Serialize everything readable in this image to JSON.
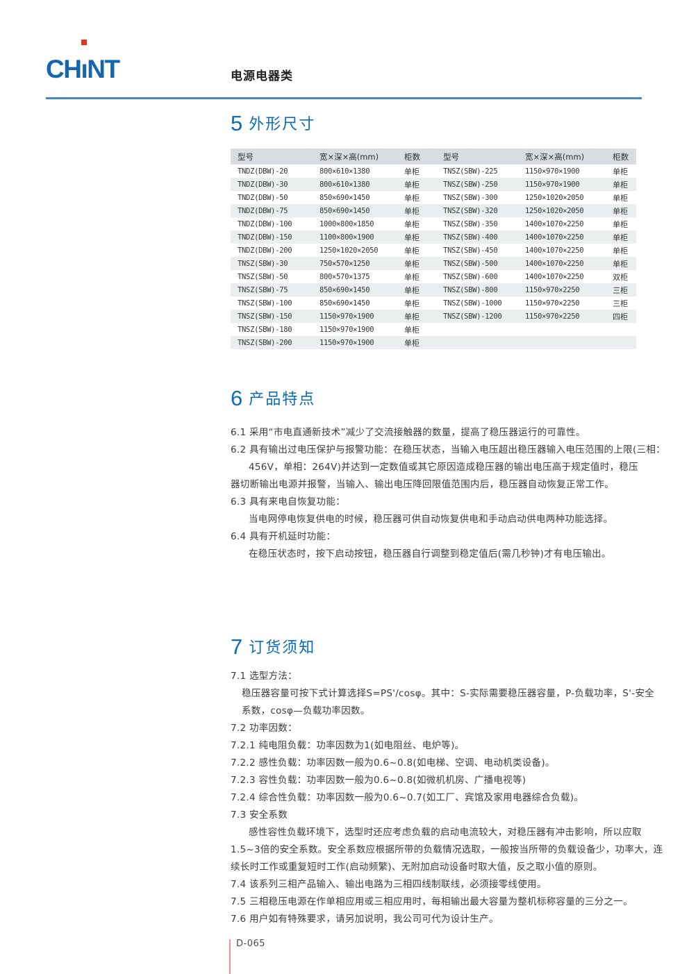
{
  "header": {
    "logo_left": "CH",
    "logo_stem": "ı",
    "logo_right": "NT",
    "category": "电源电器类"
  },
  "sections": [
    {
      "number": "5",
      "title": "外形尺寸"
    },
    {
      "number": "6",
      "title": "产品特点"
    },
    {
      "number": "7",
      "title": "订货须知"
    }
  ],
  "dimension_table": {
    "headers": [
      "型号",
      "宽×深×高(mm)",
      "柜数",
      "型号",
      "宽×深×高(mm)",
      "柜数"
    ],
    "rows": [
      [
        "TNDZ(DBW)-20",
        "800×610×1380",
        "单柜",
        "TNSZ(SBW)-225",
        "1150×970×1900",
        "单柜"
      ],
      [
        "TNDZ(DBW)-30",
        "800×610×1380",
        "单柜",
        "TNSZ(SBW)-250",
        "1150×970×1900",
        "单柜"
      ],
      [
        "TNDZ(DBW)-50",
        "850×690×1450",
        "单柜",
        "TNSZ(SBW)-300",
        "1250×1020×2050",
        "单柜"
      ],
      [
        "TNDZ(DBW)-75",
        "850×690×1450",
        "单柜",
        "TNSZ(SBW)-320",
        "1250×1020×2050",
        "单柜"
      ],
      [
        "TNDZ(DBW)-100",
        "1000×800×1850",
        "单柜",
        "TNSZ(SBW)-350",
        "1400×1070×2250",
        "单柜"
      ],
      [
        "TNDZ(DBW)-150",
        "1100×800×1900",
        "单柜",
        "TNSZ(SBW)-400",
        "1400×1070×2250",
        "单柜"
      ],
      [
        "TNDZ(DBW)-200",
        "1250×1020×2050",
        "单柜",
        "TNSZ(SBW)-450",
        "1400×1070×2250",
        "单柜"
      ],
      [
        "TNSZ(SBW)-30",
        "750×570×1250",
        "单柜",
        "TNSZ(SBW)-500",
        "1400×1070×2250",
        "单柜"
      ],
      [
        "TNSZ(SBW)-50",
        "800×570×1375",
        "单柜",
        "TNSZ(SBW)-600",
        "1400×1070×2250",
        "双柜"
      ],
      [
        "TNSZ(SBW)-75",
        "850×690×1450",
        "单柜",
        "TNSZ(SBW)-800",
        "1150×970×2250",
        "三柜"
      ],
      [
        "TNSZ(SBW)-100",
        "850×690×1450",
        "单柜",
        "TNSZ(SBW)-1000",
        "1150×970×2250",
        "三柜"
      ],
      [
        "TNSZ(SBW)-150",
        "1150×970×1900",
        "单柜",
        "TNSZ(SBW)-1200",
        "1150×970×2250",
        "四柜"
      ],
      [
        "TNSZ(SBW)-180",
        "1150×970×1900",
        "单柜",
        "",
        "",
        ""
      ],
      [
        "TNSZ(SBW)-200",
        "1150×970×1900",
        "单柜",
        "",
        "",
        ""
      ]
    ]
  },
  "features": {
    "lines": [
      {
        "indent": 0,
        "text": "6.1 采用“市电直通新技术”减少了交流接触器的数量，提高了稳压器运行的可靠性。"
      },
      {
        "indent": 0,
        "text": "6.2 具有输出过电压保护与报警功能：在稳压状态，当输入电压超出稳压器输入电压范围的上限(三相："
      },
      {
        "indent": 2,
        "text": "456V，单相：264V)并达到一定数值或其它原因造成稳压器的输出电压高于规定值时，稳压"
      },
      {
        "indent": 0,
        "text": "器切断输出电源并报警，当输入、输出电压降回限值范围内后，稳压器自动恢复正常工作。"
      },
      {
        "indent": 0,
        "text": "6.3 具有来电自恢复功能："
      },
      {
        "indent": 2,
        "text": "当电网停电恢复供电的时候，稳压器可供自动恢复供电和手动启动供电两种功能选择。"
      },
      {
        "indent": 0,
        "text": "6.4 具有开机延时功能："
      },
      {
        "indent": 2,
        "text": "在稳压状态时，按下启动按钮，稳压器自行调整到稳定值后(需几秒钟)才有电压输出。"
      }
    ]
  },
  "ordering": {
    "lines": [
      {
        "indent": 0,
        "text": "7.1 选型方法："
      },
      {
        "indent": 1,
        "text": "稳压器容量可按下式计算选择S=PS'/cosφ。其中：S-实际需要稳压器容量，P-负载功率，S'-安全"
      },
      {
        "indent": 1,
        "text": "系数，cosφ—负载功率因数。"
      },
      {
        "indent": 0,
        "text": "7.2 功率因数："
      },
      {
        "indent": 0,
        "text": "7.2.1 纯电阻负载：功率因数为1(如电阻丝、电炉等)。"
      },
      {
        "indent": 0,
        "text": "7.2.2 感性负载：功率因数一般为0.6~0.8(如电梯、空调、电动机类设备)。"
      },
      {
        "indent": 0,
        "text": "7.2.3 容性负载：功率因数一般为0.6~0.8(如微机机房、广播电视等)"
      },
      {
        "indent": 0,
        "text": "7.2.4 综合性负载：功率因数一般为0.6~0.7(如工厂、宾馆及家用电器综合负载)。"
      },
      {
        "indent": 0,
        "text": "7.3 安全系数"
      },
      {
        "indent": 2,
        "text": "感性容性负载环境下，选型时还应考虑负载的启动电流较大，对稳压器有冲击影响，所以应取"
      },
      {
        "indent": 0,
        "text": "1.5~3倍的安全系数。安全系数应根据所带的负载情况选取，一般按当所带的负载设备少，功率大，连"
      },
      {
        "indent": 0,
        "text": "续长时工作或重复短时工作(启动频繁)、无附加启动设备时取大值，反之取小值的原则。"
      },
      {
        "indent": 0,
        "text": "7.4 该系列三相产品输入、输出电路为三相四线制联线，必须接零线使用。"
      },
      {
        "indent": 0,
        "text": "7.5 三相稳压电源在作单相应用或三相应用时，每相输出最大容量为整机标称容量的三分之一。"
      },
      {
        "indent": 0,
        "text": "7.6 用户如有特殊要求，请另加说明，我公司可代为设计生产。"
      }
    ]
  },
  "footer": {
    "code": "D-065"
  },
  "colors": {
    "accent_blue": "#0c6cb8",
    "rule_blue": "#4a86c2",
    "logo_blue": "#1565af",
    "logo_red": "#e8341c",
    "table_header_bg": "#d8dde1",
    "table_stripe_bg": "#ebeeef",
    "footer_rule_red": "#f09090"
  }
}
